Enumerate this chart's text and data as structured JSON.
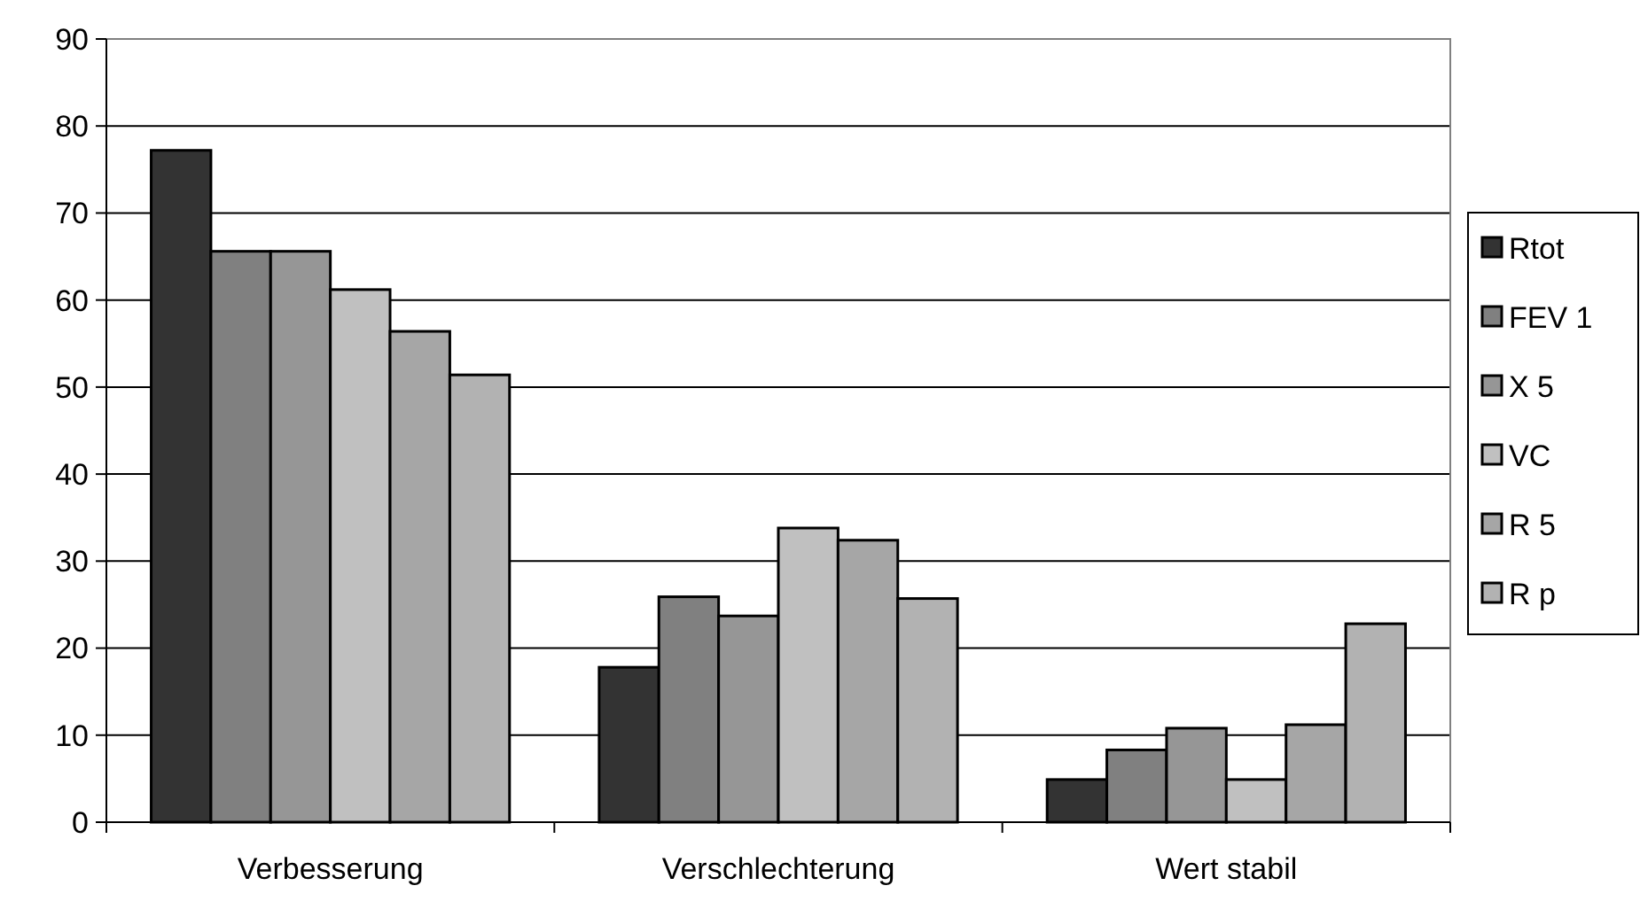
{
  "chart_data": {
    "type": "bar",
    "categories": [
      "Verbesserung",
      "Verschlechterung",
      "Wert stabil"
    ],
    "series": [
      {
        "name": "Rtot",
        "color": "#333333",
        "values": [
          77.2,
          17.8,
          4.9
        ]
      },
      {
        "name": "FEV 1",
        "color": "#808080",
        "values": [
          65.6,
          25.9,
          8.3
        ]
      },
      {
        "name": "X 5",
        "color": "#969696",
        "values": [
          65.6,
          23.7,
          10.8
        ]
      },
      {
        "name": "VC",
        "color": "#c0c0c0",
        "values": [
          61.2,
          33.8,
          4.9
        ]
      },
      {
        "name": "R 5",
        "color": "#a6a6a6",
        "values": [
          56.4,
          32.4,
          11.2
        ]
      },
      {
        "name": "R p",
        "color": "#b2b2b2",
        "values": [
          51.4,
          25.7,
          22.8
        ]
      }
    ],
    "ylim": [
      0,
      90
    ],
    "yticks": [
      0,
      10,
      20,
      30,
      40,
      50,
      60,
      70,
      80,
      90
    ],
    "grid": "y",
    "legend": "right"
  }
}
